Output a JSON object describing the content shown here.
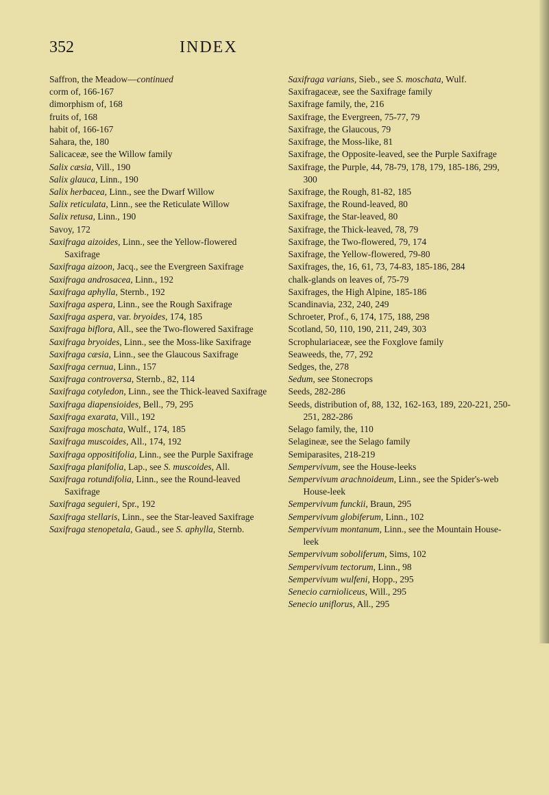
{
  "page_number": "352",
  "page_title": "INDEX",
  "column_left": [
    [
      [
        "Saffron, the Meadow—"
      ],
      [
        "continued",
        "i"
      ]
    ],
    [
      [
        "    corm of, 166-167"
      ]
    ],
    [
      [
        "    dimorphism of, 168"
      ]
    ],
    [
      [
        "    fruits of, 168"
      ]
    ],
    [
      [
        "    habit of, 166-167"
      ]
    ],
    [
      [
        "Sahara, the, 180"
      ]
    ],
    [
      [
        "Salicaceæ, see the Willow family"
      ]
    ],
    [
      [
        "Salix cæsia",
        "i"
      ],
      [
        ", Vill., 190"
      ]
    ],
    [
      [
        "Salix glauca",
        "i"
      ],
      [
        ", Linn., 190"
      ]
    ],
    [
      [
        "Salix herbacea",
        "i"
      ],
      [
        ", Linn., see the Dwarf Willow"
      ]
    ],
    [
      [
        "Salix reticulata",
        "i"
      ],
      [
        ", Linn., see the Reticulate Willow"
      ]
    ],
    [
      [
        "Salix retusa",
        "i"
      ],
      [
        ", Linn., 190"
      ]
    ],
    [
      [
        "Savoy, 172"
      ]
    ],
    [
      [
        "Saxifraga aizoides",
        "i"
      ],
      [
        ", Linn., see the Yellow-flowered Saxifrage"
      ]
    ],
    [
      [
        "Saxifraga aizoon",
        "i"
      ],
      [
        ", Jacq., see the Evergreen Saxifrage"
      ]
    ],
    [
      [
        "Saxifraga androsacea",
        "i"
      ],
      [
        ", Linn., 192"
      ]
    ],
    [
      [
        "Saxifraga aphylla",
        "i"
      ],
      [
        ", Sternb., 192"
      ]
    ],
    [
      [
        "Saxifraga aspera",
        "i"
      ],
      [
        ", Linn., see the Rough Saxifrage"
      ]
    ],
    [
      [
        "Saxifraga aspera",
        "i"
      ],
      [
        ", var. "
      ],
      [
        "bryoides",
        "i"
      ],
      [
        ", 174, 185"
      ]
    ],
    [
      [
        "Saxifraga biflora",
        "i"
      ],
      [
        ", All., see the Two-flowered Saxifrage"
      ]
    ],
    [
      [
        "Saxifraga bryoides",
        "i"
      ],
      [
        ", Linn., see the Moss-like Saxifrage"
      ]
    ],
    [
      [
        "Saxifraga cæsia",
        "i"
      ],
      [
        ", Linn., see the Glaucous Saxifrage"
      ]
    ],
    [
      [
        "Saxifraga cernua",
        "i"
      ],
      [
        ", Linn., 157"
      ]
    ],
    [
      [
        "Saxifraga controversa",
        "i"
      ],
      [
        ", Sternb., 82, 114"
      ]
    ],
    [
      [
        "Saxifraga cotyledon",
        "i"
      ],
      [
        ", Linn., see the Thick-leaved Saxifrage"
      ]
    ],
    [
      [
        "Saxifraga diapensioides",
        "i"
      ],
      [
        ", Bell., 79, 295"
      ]
    ],
    [
      [
        "Saxifraga exarata",
        "i"
      ],
      [
        ", Vill., 192"
      ]
    ],
    [
      [
        "Saxifraga moschata",
        "i"
      ],
      [
        ", Wulf., 174, 185"
      ]
    ],
    [
      [
        "Saxifraga muscoides",
        "i"
      ],
      [
        ", All., 174, 192"
      ]
    ],
    [
      [
        "Saxifraga oppositifolia",
        "i"
      ],
      [
        ", Linn., see the Purple Saxifrage"
      ]
    ],
    [
      [
        "Saxifraga planifolia",
        "i"
      ],
      [
        ", Lap., see "
      ],
      [
        "S. muscoides",
        "i"
      ],
      [
        ", All."
      ]
    ],
    [
      [
        "Saxifraga rotundifolia",
        "i"
      ],
      [
        ", Linn., see the Round-leaved Saxifrage"
      ]
    ],
    [
      [
        "Saxifraga seguieri",
        "i"
      ],
      [
        ", Spr., 192"
      ]
    ],
    [
      [
        "Saxifraga stellaris",
        "i"
      ],
      [
        ", Linn., see the Star-leaved Saxifrage"
      ]
    ],
    [
      [
        "Saxifraga stenopetala",
        "i"
      ],
      [
        ", Gaud., see "
      ],
      [
        "S. aphylla",
        "i"
      ],
      [
        ", Sternb."
      ]
    ]
  ],
  "column_right": [
    [
      [
        "Saxifraga varians",
        "i"
      ],
      [
        ", Sieb., see "
      ],
      [
        "S. moschata",
        "i"
      ],
      [
        ", Wulf."
      ]
    ],
    [
      [
        "Saxifragaceæ, see the Saxifrage family"
      ]
    ],
    [
      [
        "Saxifrage family, the, 216"
      ]
    ],
    [
      [
        "Saxifrage, the Evergreen, 75-77, 79"
      ]
    ],
    [
      [
        "Saxifrage, the Glaucous, 79"
      ]
    ],
    [
      [
        "Saxifrage, the Moss-like, 81"
      ]
    ],
    [
      [
        "Saxifrage, the Opposite-leaved, see the Purple Saxifrage"
      ]
    ],
    [
      [
        "Saxifrage, the Purple, 44, 78-79, 178, 179, 185-186, 299, 300"
      ]
    ],
    [
      [
        "Saxifrage, the Rough, 81-82, 185"
      ]
    ],
    [
      [
        "Saxifrage, the Round-leaved, 80"
      ]
    ],
    [
      [
        "Saxifrage, the Star-leaved, 80"
      ]
    ],
    [
      [
        "Saxifrage, the Thick-leaved, 78, 79"
      ]
    ],
    [
      [
        "Saxifrage, the Two-flowered, 79, 174"
      ]
    ],
    [
      [
        "Saxifrage, the Yellow-flowered, 79-80"
      ]
    ],
    [
      [
        "Saxifrages, the, 16, 61, 73, 74-83, 185-186, 284"
      ]
    ],
    [
      [
        "    chalk-glands on leaves of, 75-79"
      ]
    ],
    [
      [
        "Saxifrages, the High Alpine, 185-186"
      ]
    ],
    [
      [
        "Scandinavia, 232, 240, 249"
      ]
    ],
    [
      [
        "Schroeter, Prof., 6, 174, 175, 188, 298"
      ]
    ],
    [
      [
        "Scotland, 50, 110, 190, 211, 249, 303"
      ]
    ],
    [
      [
        "Scrophulariaceæ, see the Foxglove family"
      ]
    ],
    [
      [
        "Seaweeds, the, 77, 292"
      ]
    ],
    [
      [
        "Sedges, the, 278"
      ]
    ],
    [
      [
        "Sedum",
        "i"
      ],
      [
        ", see Stonecrops"
      ]
    ],
    [
      [
        "Seeds, 282-286"
      ]
    ],
    [
      [
        "Seeds, distribution of, 88, 132, 162-163, 189, 220-221, 250-251, 282-286"
      ]
    ],
    [
      [
        "Selago family, the, 110"
      ]
    ],
    [
      [
        "Selagineæ, see the Selago family"
      ]
    ],
    [
      [
        "Semiparasites, 218-219"
      ]
    ],
    [
      [
        "Sempervivum",
        "i"
      ],
      [
        ", see the House-leeks"
      ]
    ],
    [
      [
        "Sempervivum arachnoideum",
        "i"
      ],
      [
        ", Linn., see the Spider's-web House-leek"
      ]
    ],
    [
      [
        "Sempervivum funckii",
        "i"
      ],
      [
        ", Braun, 295"
      ]
    ],
    [
      [
        "Sempervivum globiferum",
        "i"
      ],
      [
        ", Linn., 102"
      ]
    ],
    [
      [
        "Sempervivum montanum",
        "i"
      ],
      [
        ", Linn., see the Mountain House-leek"
      ]
    ],
    [
      [
        "Sempervivum soboliferum",
        "i"
      ],
      [
        ", Sims, 102"
      ]
    ],
    [
      [
        "Sempervivum tectorum",
        "i"
      ],
      [
        ", Linn., 98"
      ]
    ],
    [
      [
        "Sempervivum wulfeni",
        "i"
      ],
      [
        ", Hopp., 295"
      ]
    ],
    [
      [
        "Senecio carnioliceus",
        "i"
      ],
      [
        ", Will., 295"
      ]
    ],
    [
      [
        "Senecio uniflorus",
        "i"
      ],
      [
        ", All., 295"
      ]
    ]
  ]
}
